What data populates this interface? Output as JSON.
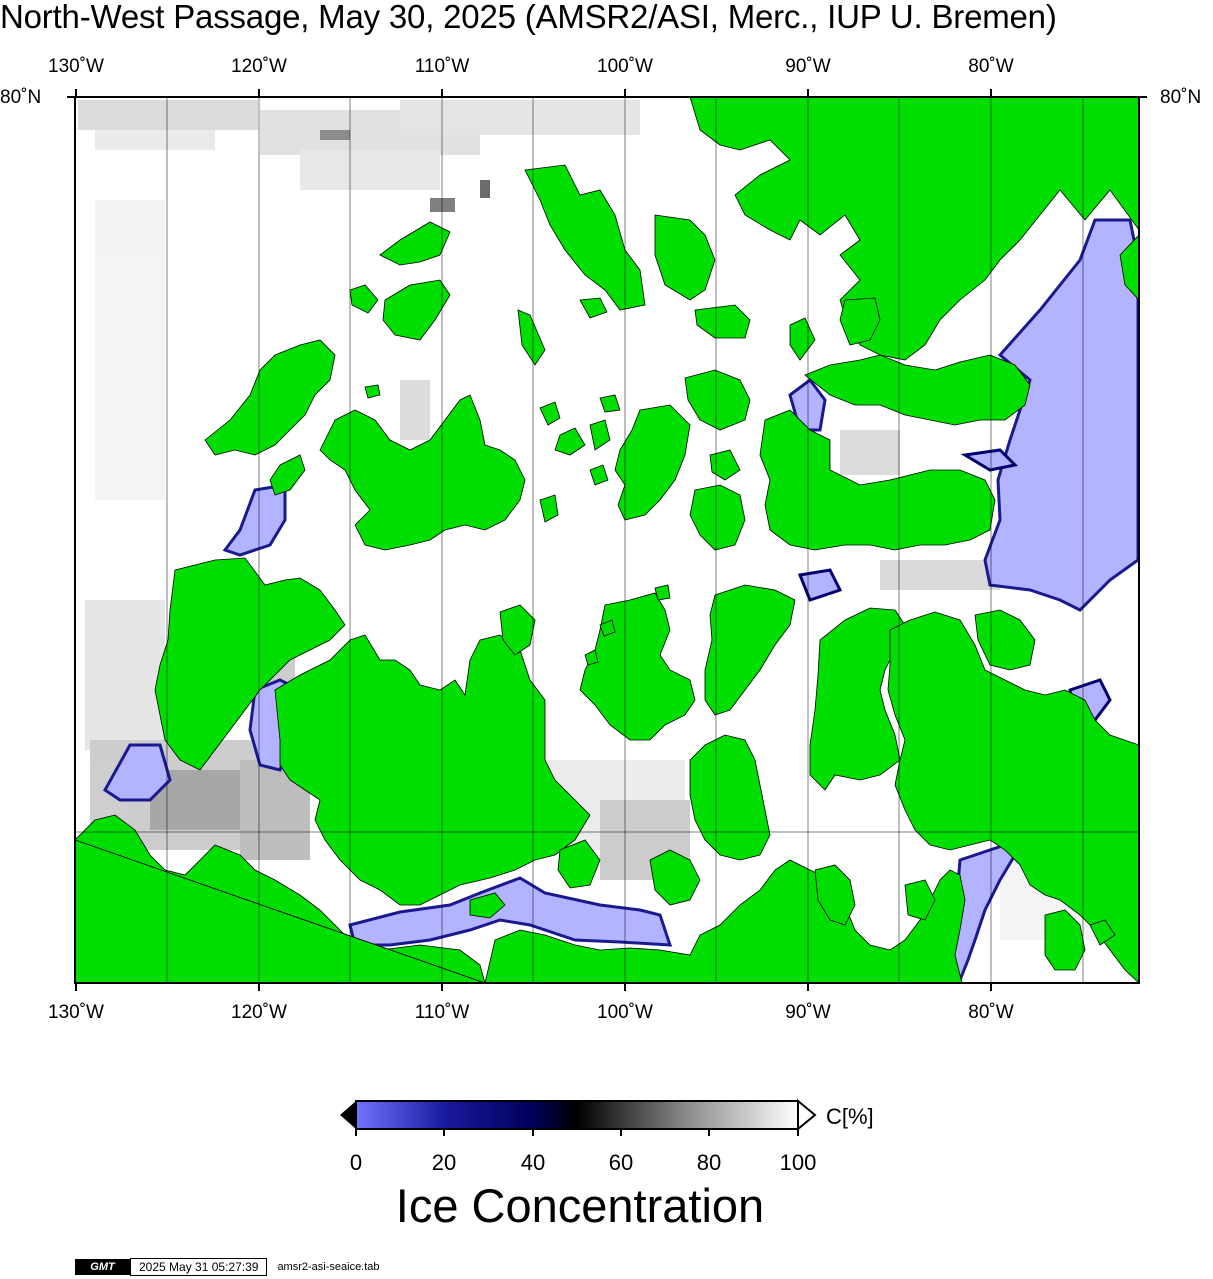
{
  "title": "North-West Passage, May 30, 2025 (AMSR2/ASI, Merc., IUP U. Bremen)",
  "map": {
    "lon_labels": [
      "130˚W",
      "120˚W",
      "110˚W",
      "100˚W",
      "90˚W",
      "80˚W"
    ],
    "lat_label": "80˚N",
    "colors": {
      "land": "#00dd00",
      "water_open": "#ffffff",
      "ice_low": "#b3b3ff",
      "ice_mid": "#00006e",
      "ice_high": "#000000"
    }
  },
  "colorbar": {
    "ticks": [
      "0",
      "20",
      "40",
      "60",
      "80",
      "100"
    ],
    "unit": "C[%]",
    "title": "Ice Concentration"
  },
  "footer": {
    "logo": "GMT",
    "timestamp": "2025 May 31 05:27:39",
    "filename": "amsr2-asi-seaice.tab"
  }
}
